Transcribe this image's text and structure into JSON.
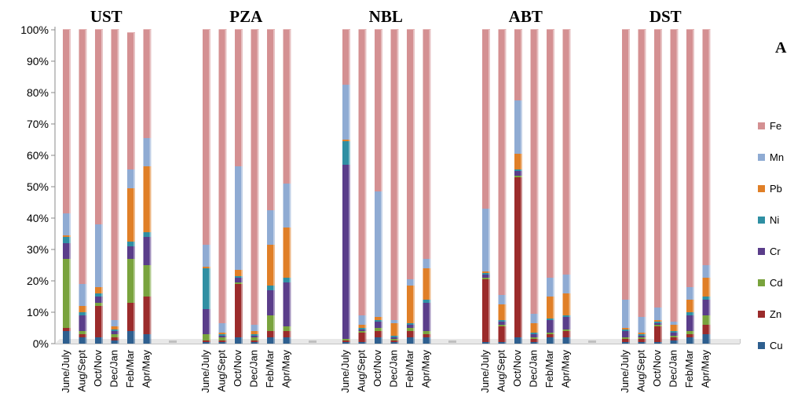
{
  "chart_data": {
    "type": "bar",
    "stacked": "percent",
    "panel_label": "A",
    "y_ticks": [
      "0%",
      "10%",
      "20%",
      "30%",
      "40%",
      "50%",
      "60%",
      "70%",
      "80%",
      "90%",
      "100%"
    ],
    "ylim": [
      0,
      100
    ],
    "grid": false,
    "legend_position": "right",
    "elements": [
      "Cu",
      "Zn",
      "Cd",
      "Cr",
      "Ni",
      "Pb",
      "Mn",
      "Fe"
    ],
    "legend_order": [
      "Fe",
      "Mn",
      "Pb",
      "Ni",
      "Cr",
      "Cd",
      "Zn",
      "Cu"
    ],
    "colors": {
      "Cu": "#2e5f8f",
      "Zn": "#9b2b2b",
      "Cd": "#79a33d",
      "Cr": "#5a3d8a",
      "Ni": "#2f8fa3",
      "Pb": "#e07f27",
      "Mn": "#8fabd3",
      "Fe": "#d49092"
    },
    "categories": [
      "June/July",
      "Aug/Sept",
      "Oct/Nov",
      "Dec/Jan",
      "Feb/Mar",
      "Apr/May"
    ],
    "groups": [
      {
        "site": "UST",
        "bars": [
          [
            4,
            1,
            22,
            5,
            2,
            0.5,
            7,
            58.5
          ],
          [
            2,
            1,
            1,
            5,
            1,
            2,
            7,
            81
          ],
          [
            2,
            10,
            1,
            2,
            1,
            2,
            20,
            62
          ],
          [
            1,
            1,
            1,
            1,
            0.5,
            1,
            2,
            92.5
          ],
          [
            4,
            9,
            14,
            4,
            1.5,
            17,
            6,
            43.5
          ],
          [
            3,
            12,
            10,
            9,
            1.5,
            21,
            9,
            34.5
          ]
        ]
      },
      {
        "site": "PZA",
        "bars": [
          [
            0.5,
            0.5,
            2,
            8,
            13,
            0.5,
            7,
            68.5
          ],
          [
            0.5,
            0.5,
            1,
            0.5,
            0.5,
            0.5,
            3,
            93.5
          ],
          [
            2,
            17,
            0.5,
            1.5,
            0.5,
            2,
            33,
            43.5
          ],
          [
            0.5,
            0.5,
            1,
            0.5,
            0.5,
            1,
            2,
            94
          ],
          [
            2,
            2,
            5,
            8,
            1.5,
            13,
            11,
            57.5
          ],
          [
            2,
            2,
            1.5,
            14,
            1.5,
            16,
            14,
            49
          ]
        ]
      },
      {
        "site": "NBL",
        "bars": [
          [
            0.5,
            0.5,
            0.5,
            55.5,
            7.5,
            0.5,
            17.5,
            17.5
          ],
          [
            0.5,
            3,
            0.5,
            0.5,
            0.5,
            1,
            3,
            91
          ],
          [
            2,
            2,
            1,
            2,
            0.5,
            1,
            40,
            51.5
          ],
          [
            0.5,
            0.5,
            0.5,
            0.5,
            0.5,
            4,
            1,
            92.5
          ],
          [
            2,
            2,
            1,
            1,
            0.5,
            12,
            2,
            79.5
          ],
          [
            2,
            1,
            1,
            9,
            1,
            10,
            3,
            73
          ]
        ]
      },
      {
        "site": "ABT",
        "bars": [
          [
            0.5,
            20,
            0.5,
            1,
            0.5,
            0.5,
            20,
            57
          ],
          [
            0.5,
            5,
            0.5,
            1,
            0.5,
            5,
            3,
            84.5
          ],
          [
            2,
            51,
            0.5,
            1.5,
            0.5,
            5,
            17,
            22.5
          ],
          [
            0.5,
            1,
            0.5,
            1,
            0.5,
            3,
            3,
            90.5
          ],
          [
            2,
            1,
            0.5,
            4,
            0.5,
            7,
            6,
            79
          ],
          [
            2,
            2,
            0.5,
            4,
            0.5,
            7,
            6,
            78
          ]
        ]
      },
      {
        "site": "DST",
        "bars": [
          [
            0.5,
            1,
            0.5,
            2,
            0.5,
            0.5,
            9,
            86
          ],
          [
            0.5,
            1,
            0.5,
            0.5,
            0.5,
            0.5,
            5,
            91.5
          ],
          [
            0.5,
            5,
            0.5,
            0.5,
            0.5,
            0.5,
            4,
            88.5
          ],
          [
            1,
            1,
            0.5,
            1,
            0.5,
            2,
            1,
            93
          ],
          [
            2,
            1,
            1,
            5,
            1,
            4,
            4,
            82
          ],
          [
            3,
            3,
            3,
            5,
            1,
            6,
            4,
            75
          ]
        ]
      }
    ]
  }
}
